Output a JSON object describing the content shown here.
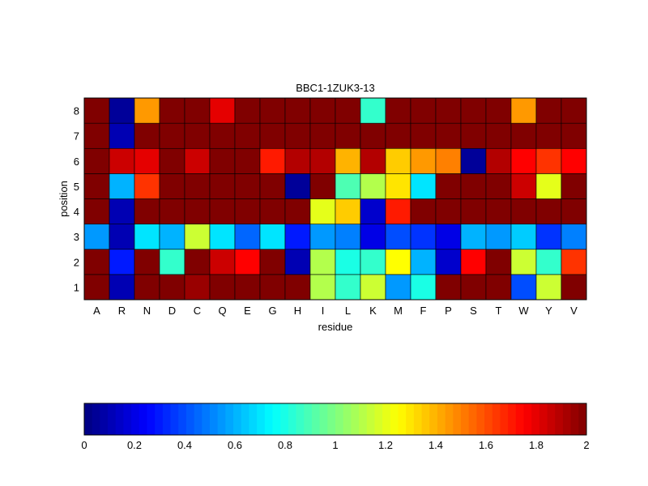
{
  "chart_data": {
    "type": "heatmap",
    "title": "BBC1-1ZUK3-13",
    "xlabel": "residue",
    "ylabel": "position",
    "x": [
      "A",
      "R",
      "N",
      "D",
      "C",
      "Q",
      "E",
      "G",
      "H",
      "I",
      "L",
      "K",
      "M",
      "F",
      "P",
      "S",
      "T",
      "W",
      "Y",
      "V"
    ],
    "y": [
      "1",
      "2",
      "3",
      "4",
      "5",
      "6",
      "7",
      "8"
    ],
    "values": [
      [
        2.0,
        0.1,
        2.0,
        2.0,
        1.95,
        2.0,
        2.0,
        2.0,
        2.0,
        1.1,
        0.85,
        1.15,
        0.55,
        0.8,
        2.0,
        2.0,
        2.0,
        0.4,
        1.15,
        2.0
      ],
      [
        2.0,
        0.3,
        2.0,
        0.85,
        2.0,
        1.85,
        1.75,
        2.0,
        0.1,
        1.1,
        0.8,
        0.85,
        1.25,
        0.6,
        0.15,
        1.75,
        2.0,
        1.15,
        0.85,
        1.65
      ],
      [
        0.55,
        0.1,
        0.7,
        0.6,
        1.15,
        0.7,
        0.45,
        0.7,
        0.3,
        0.55,
        0.5,
        0.2,
        0.4,
        0.35,
        0.2,
        0.6,
        0.55,
        0.65,
        0.35,
        0.5
      ],
      [
        2.0,
        0.1,
        2.0,
        2.0,
        2.0,
        2.0,
        2.0,
        2.0,
        2.0,
        1.2,
        1.35,
        0.15,
        1.7,
        2.0,
        2.0,
        2.0,
        2.0,
        2.0,
        2.0,
        2.0
      ],
      [
        2.0,
        0.6,
        1.65,
        2.0,
        2.0,
        2.0,
        2.0,
        2.0,
        0.05,
        2.0,
        0.9,
        1.1,
        1.3,
        0.7,
        2.0,
        2.0,
        2.0,
        1.85,
        1.2,
        2.0
      ],
      [
        2.0,
        1.85,
        1.8,
        2.0,
        1.85,
        2.0,
        2.0,
        1.7,
        1.9,
        1.9,
        1.4,
        1.9,
        1.35,
        1.45,
        1.5,
        0.05,
        1.9,
        1.75,
        1.65,
        1.75
      ],
      [
        2.0,
        0.1,
        2.0,
        2.0,
        2.0,
        2.0,
        2.0,
        2.0,
        2.0,
        2.0,
        2.0,
        2.0,
        2.0,
        2.0,
        2.0,
        2.0,
        2.0,
        2.0,
        2.0,
        2.0
      ],
      [
        2.0,
        0.05,
        1.45,
        2.0,
        2.0,
        1.8,
        2.0,
        2.0,
        2.0,
        2.0,
        2.0,
        0.85,
        2.0,
        2.0,
        2.0,
        2.0,
        2.0,
        1.45,
        2.0,
        2.0
      ]
    ],
    "colormap": "jet",
    "clim": [
      0,
      2
    ],
    "colorbar": {
      "placement": "bottom",
      "ticks": [
        "0",
        "0.2",
        "0.4",
        "0.6",
        "0.8",
        "1",
        "1.2",
        "1.4",
        "1.6",
        "1.8",
        "2"
      ]
    }
  }
}
